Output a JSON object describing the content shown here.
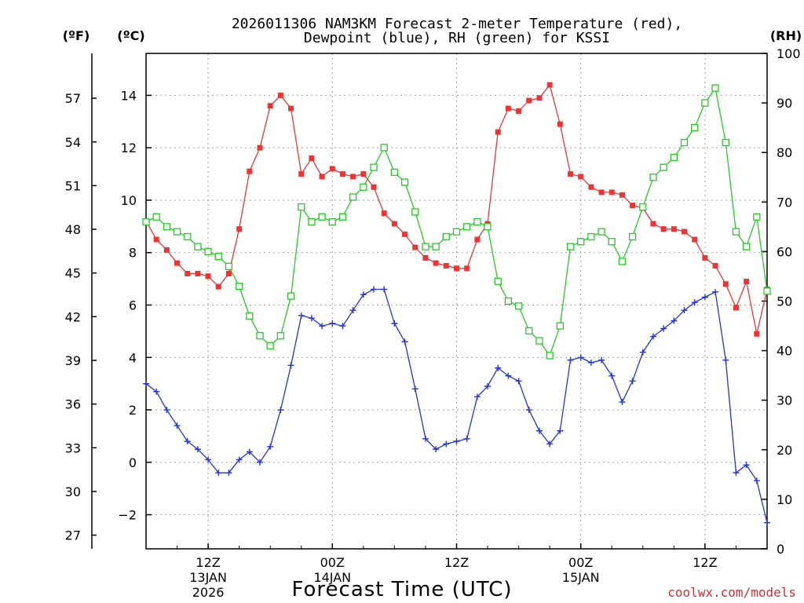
{
  "colors": {
    "temperature": "#ee3333",
    "dewpoint": "#2233dd",
    "rh": "#22cc22",
    "grid": "#a0a0a0",
    "credit": "#d03030"
  },
  "chart_data": {
    "type": "line",
    "title_line1": "2026011306 NAM3KM Forecast 2-meter Temperature (red),",
    "title_line2": "Dewpoint (blue), RH (green) for KSSI",
    "xlabel": "Forecast Time (UTC)",
    "credit": "coolwx.com/models",
    "units": {
      "fahrenheit": "(ºF)",
      "celsius": "(ºC)",
      "rh": "(RH)"
    },
    "x_hours_range": [
      0,
      60
    ],
    "celsius_range": [
      -3.3,
      15.6
    ],
    "rh_range": [
      0,
      100
    ],
    "celsius_ticks": [
      -2,
      0,
      2,
      4,
      6,
      8,
      10,
      12,
      14
    ],
    "fahrenheit_ticks": [
      27,
      30,
      33,
      36,
      39,
      42,
      45,
      48,
      51,
      54,
      57
    ],
    "rh_ticks": [
      0,
      10,
      20,
      30,
      40,
      50,
      60,
      70,
      80,
      90,
      100
    ],
    "x_ticks": [
      {
        "hour": 6,
        "label": "12Z",
        "sub1": "13JAN",
        "sub2": "2026"
      },
      {
        "hour": 18,
        "label": "00Z",
        "sub1": "14JAN",
        "sub2": ""
      },
      {
        "hour": 30,
        "label": "12Z",
        "sub1": "",
        "sub2": ""
      },
      {
        "hour": 42,
        "label": "00Z",
        "sub1": "15JAN",
        "sub2": ""
      },
      {
        "hour": 54,
        "label": "12Z",
        "sub1": "",
        "sub2": ""
      }
    ],
    "hours": [
      0,
      1,
      2,
      3,
      4,
      5,
      6,
      7,
      8,
      9,
      10,
      11,
      12,
      13,
      14,
      15,
      16,
      17,
      18,
      19,
      20,
      21,
      22,
      23,
      24,
      25,
      26,
      27,
      28,
      29,
      30,
      31,
      32,
      33,
      34,
      35,
      36,
      37,
      38,
      39,
      40,
      41,
      42,
      43,
      44,
      45,
      46,
      47,
      48,
      49,
      50,
      51,
      52,
      53,
      54,
      55,
      56,
      57,
      58,
      59,
      60
    ],
    "series": [
      {
        "name": "Temperature",
        "units": "C",
        "color_key": "temperature",
        "marker": "filled-square",
        "values": [
          9.2,
          8.5,
          8.1,
          7.6,
          7.2,
          7.2,
          7.1,
          6.7,
          7.2,
          8.9,
          11.1,
          12.0,
          13.6,
          14.0,
          13.5,
          11.0,
          11.6,
          10.9,
          11.2,
          11.0,
          10.9,
          11.0,
          10.5,
          9.5,
          9.1,
          8.7,
          8.2,
          7.8,
          7.6,
          7.5,
          7.4,
          7.4,
          8.5,
          9.1,
          12.6,
          13.5,
          13.4,
          13.8,
          13.9,
          14.4,
          12.9,
          11.0,
          10.9,
          10.5,
          10.3,
          10.3,
          10.2,
          9.8,
          9.7,
          9.1,
          8.9,
          8.9,
          8.8,
          8.5,
          7.8,
          7.5,
          6.8,
          5.9,
          6.9,
          4.9,
          6.6
        ]
      },
      {
        "name": "Dewpoint",
        "units": "C",
        "color_key": "dewpoint",
        "marker": "plus",
        "values": [
          3.0,
          2.7,
          2.0,
          1.4,
          0.8,
          0.5,
          0.1,
          -0.4,
          -0.4,
          0.1,
          0.4,
          0.0,
          0.6,
          2.0,
          3.7,
          5.6,
          5.5,
          5.2,
          5.3,
          5.2,
          5.8,
          6.4,
          6.6,
          6.6,
          5.3,
          4.6,
          2.8,
          0.9,
          0.5,
          0.7,
          0.8,
          0.9,
          2.5,
          2.9,
          3.6,
          3.3,
          3.1,
          2.0,
          1.2,
          0.7,
          1.2,
          3.9,
          4.0,
          3.8,
          3.9,
          3.3,
          2.3,
          3.1,
          4.2,
          4.8,
          5.1,
          5.4,
          5.8,
          6.1,
          6.3,
          6.5,
          3.9,
          -0.4,
          -0.1,
          -0.7,
          -2.3
        ]
      },
      {
        "name": "RH",
        "units": "%",
        "color_key": "rh",
        "marker": "open-square",
        "values": [
          66,
          67,
          65,
          64,
          63,
          61,
          60,
          59,
          57,
          53,
          47,
          43,
          41,
          43,
          51,
          69,
          66,
          67,
          66,
          67,
          71,
          73,
          77,
          81,
          76,
          74,
          68,
          61,
          61,
          63,
          64,
          65,
          66,
          65,
          54,
          50,
          49,
          44,
          42,
          39,
          45,
          61,
          62,
          63,
          64,
          62,
          58,
          63,
          69,
          75,
          77,
          79,
          82,
          85,
          90,
          93,
          82,
          64,
          61,
          67,
          52
        ]
      }
    ]
  }
}
